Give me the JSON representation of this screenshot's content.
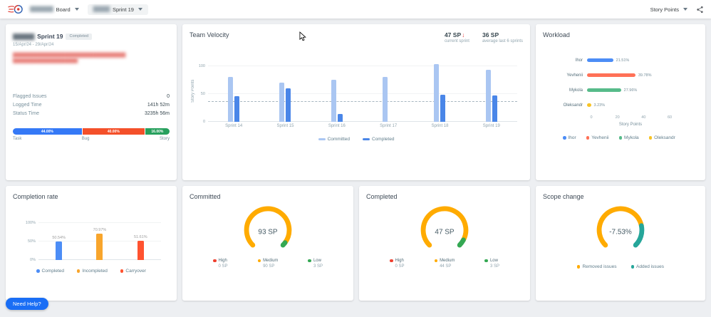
{
  "topbar": {
    "board_name_redacted": "███████",
    "board_label": "Board",
    "sprint_name_redacted": "█████",
    "sprint_label": "Sprint 19",
    "metric_select": "Story Points"
  },
  "sprint_card": {
    "title_redacted": "██████",
    "title": "Sprint 19",
    "status_badge": "Completed",
    "date_range": "15/Apr/24 - 29/Apr/24",
    "goal_redacted_lines": [
      "████████████████████████████████████████",
      "███████████████████████"
    ],
    "stats": [
      {
        "label": "Flagged Issues",
        "value": "0"
      },
      {
        "label": "Logged Time",
        "value": "141h 52m"
      },
      {
        "label": "Status Time",
        "value": "3235h 56m"
      }
    ],
    "issue_distribution": [
      {
        "label": "Task",
        "percent": "44.00%",
        "value": 44,
        "color": "#3579f6"
      },
      {
        "label": "Bug",
        "percent": "40.00%",
        "value": 40,
        "color": "#f4502a"
      },
      {
        "label": "Story",
        "percent": "16.00%",
        "value": 16,
        "color": "#27a05d"
      }
    ]
  },
  "chart_data": [
    {
      "id": "team-velocity",
      "type": "bar",
      "title": "Team Velocity",
      "header_stats": [
        {
          "value": "47 SP",
          "trend_glyph": "↓",
          "label": "current sprint"
        },
        {
          "value": "36 SP",
          "trend_glyph": "",
          "label": "average last 6 sprints"
        }
      ],
      "categories": [
        "Sprint 14",
        "Sprint 15",
        "Sprint 16",
        "Sprint 17",
        "Sprint 18",
        "Sprint 19"
      ],
      "series": [
        {
          "name": "Committed",
          "color": "#aac6f2",
          "values": [
            80,
            70,
            76,
            80,
            104,
            93
          ]
        },
        {
          "name": "Completed",
          "color": "#4a86e8",
          "values": [
            46,
            60,
            14,
            0,
            49,
            47
          ]
        }
      ],
      "ylabel": "Story Points",
      "yticks": [
        0,
        50,
        100
      ],
      "ylim": [
        0,
        110
      ],
      "average_line": 36,
      "legend_position": "bottom"
    },
    {
      "id": "workload",
      "type": "bar-horizontal",
      "title": "Workload",
      "categories": [
        "Ihor",
        "Yevhenii",
        "Mykola",
        "Oleksandr"
      ],
      "values": [
        20,
        37,
        26,
        3
      ],
      "value_labels": [
        "21.51%",
        "39.78%",
        "27.96%",
        "3.23%"
      ],
      "colors": [
        "#4c8df6",
        "#ff7157",
        "#57bb8a",
        "#f7c325"
      ],
      "xlabel": "Story Points",
      "xticks": [
        0,
        20,
        40,
        60
      ],
      "xlim": [
        0,
        60
      ],
      "legend": [
        {
          "label": "Ihor",
          "color": "#4c8df6"
        },
        {
          "label": "Yevhenii",
          "color": "#ff7157"
        },
        {
          "label": "Mykola",
          "color": "#57bb8a"
        },
        {
          "label": "Oleksandr",
          "color": "#f7c325"
        }
      ]
    },
    {
      "id": "completion-rate",
      "type": "bar",
      "title": "Completion rate",
      "categories": [
        "Completed",
        "Incompleted",
        "Carryover"
      ],
      "values": [
        50.54,
        70.97,
        51.61
      ],
      "value_labels": [
        "50.54%",
        "70.97%",
        "51.61%"
      ],
      "colors": [
        "#4c8df6",
        "#f8a52c",
        "#ff5330"
      ],
      "yticks": [
        "0%",
        "50%",
        "100%"
      ],
      "ylim": [
        0,
        100
      ],
      "legend": [
        {
          "label": "Completed",
          "color": "#4c8df6"
        },
        {
          "label": "Incompleted",
          "color": "#f8a52c"
        },
        {
          "label": "Carryover",
          "color": "#ff5330"
        }
      ]
    },
    {
      "id": "committed-gauge",
      "type": "gauge",
      "title": "Committed",
      "value_label": "93 SP",
      "arc": [
        {
          "color": "#ffab00",
          "portion": 90
        },
        {
          "color": "#34a853",
          "portion": 3
        }
      ],
      "legend": [
        {
          "label": "High",
          "sub": "0 SP",
          "color": "#ef4130"
        },
        {
          "label": "Medium",
          "sub": "90 SP",
          "color": "#ffab00"
        },
        {
          "label": "Low",
          "sub": "3 SP",
          "color": "#34a853"
        }
      ]
    },
    {
      "id": "completed-gauge",
      "type": "gauge",
      "title": "Completed",
      "value_label": "47 SP",
      "arc": [
        {
          "color": "#ffab00",
          "portion": 44
        },
        {
          "color": "#34a853",
          "portion": 3
        }
      ],
      "legend": [
        {
          "label": "High",
          "sub": "0 SP",
          "color": "#ef4130"
        },
        {
          "label": "Medium",
          "sub": "44 SP",
          "color": "#ffab00"
        },
        {
          "label": "Low",
          "sub": "3 SP",
          "color": "#34a853"
        }
      ]
    },
    {
      "id": "scope-change-gauge",
      "type": "gauge",
      "title": "Scope change",
      "value_label": "-7.53%",
      "arc": [
        {
          "color": "#ffab00",
          "portion": 79
        },
        {
          "color": "#26a69a",
          "portion": 21
        }
      ],
      "legend": [
        {
          "label": "Removed issues",
          "color": "#ffab00"
        },
        {
          "label": "Added issues",
          "color": "#26a69a"
        }
      ]
    }
  ],
  "need_help_label": "Need Help?"
}
